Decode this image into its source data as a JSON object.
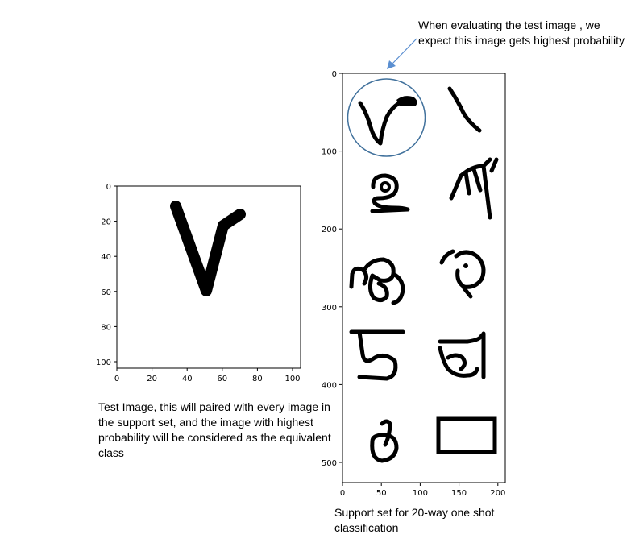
{
  "annotation": {
    "text": "When evaluating the test image , we expect this image gets highest probability",
    "color": "#4a7ab5"
  },
  "test_caption": "Test Image, this will paired with every image in the support set, and the image with highest probability will be considered as the equivalent class",
  "support_caption": "Support set for 20-way one shot classification",
  "chart_data": [
    {
      "type": "image",
      "title": "",
      "x_ticks": [
        "0",
        "20",
        "40",
        "60",
        "80",
        "100"
      ],
      "y_ticks": [
        "0",
        "20",
        "40",
        "60",
        "80",
        "100"
      ]
    },
    {
      "type": "image",
      "title": "",
      "x_ticks": [
        "0",
        "50",
        "100",
        "150",
        "200"
      ],
      "y_ticks": [
        "0",
        "100",
        "200",
        "300",
        "400",
        "500"
      ]
    }
  ]
}
